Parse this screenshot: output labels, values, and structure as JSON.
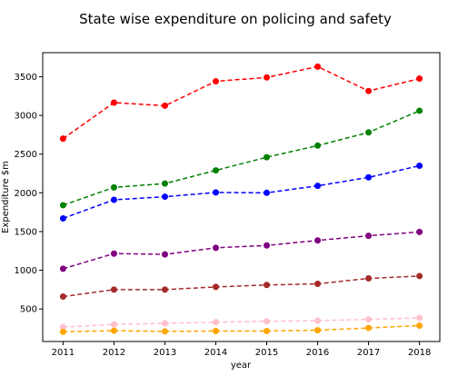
{
  "chart_data": {
    "type": "line",
    "title": "State wise expenditure on policing and safety",
    "xlabel": "year",
    "ylabel": "Expenditure $m",
    "x": [
      2011,
      2012,
      2013,
      2014,
      2015,
      2016,
      2017,
      2018
    ],
    "ylim": [
      80,
      3810
    ],
    "xlim": [
      2010.6,
      2018.4
    ],
    "yticks": [
      500,
      1000,
      1500,
      2000,
      2500,
      3000,
      3500
    ],
    "grid": false,
    "line_style": "dashed",
    "marker": "circle",
    "series": [
      {
        "color": "#ff0000",
        "values": [
          2700,
          3165,
          3125,
          3440,
          3490,
          3630,
          3315,
          3475
        ]
      },
      {
        "color": "#008000",
        "values": [
          1840,
          2070,
          2120,
          2290,
          2460,
          2610,
          2780,
          3060
        ]
      },
      {
        "color": "#0000ff",
        "values": [
          1670,
          1910,
          1950,
          2005,
          2000,
          2090,
          2200,
          2350
        ]
      },
      {
        "color": "#800080",
        "values": [
          1020,
          1215,
          1205,
          1290,
          1320,
          1385,
          1445,
          1495
        ]
      },
      {
        "color": "#a52a2a",
        "values": [
          660,
          750,
          750,
          785,
          810,
          825,
          895,
          925
        ]
      },
      {
        "color": "#ffc0cb",
        "values": [
          265,
          300,
          315,
          330,
          340,
          350,
          365,
          385
        ]
      },
      {
        "color": "#ffa500",
        "values": [
          205,
          220,
          210,
          215,
          215,
          225,
          255,
          285
        ]
      }
    ]
  }
}
